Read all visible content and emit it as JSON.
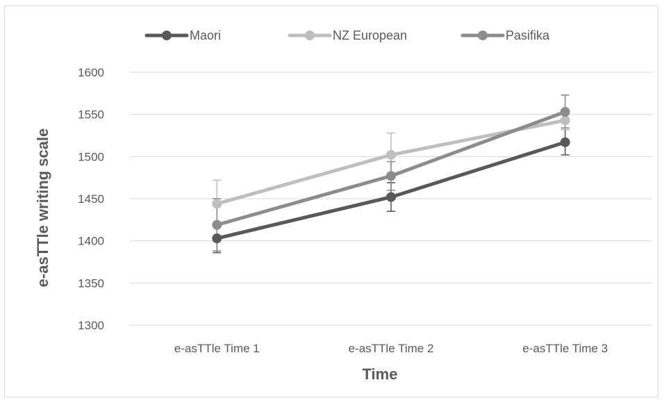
{
  "chart_data": {
    "type": "line",
    "categories": [
      "e-asTTle Time 1",
      "e-asTTle Time 2",
      "e-asTTle Time 3"
    ],
    "series": [
      {
        "name": "Maori",
        "color": "#595959",
        "values": [
          1403,
          1452,
          1517
        ],
        "error_low": [
          1386,
          1435,
          1502
        ],
        "error_high": [
          1419,
          1469,
          1532
        ]
      },
      {
        "name": "NZ European",
        "color": "#bfbfbf",
        "values": [
          1444,
          1502,
          1543
        ],
        "error_low": [
          1416,
          1476,
          1532
        ],
        "error_high": [
          1472,
          1528,
          1554
        ]
      },
      {
        "name": "Pasifika",
        "color": "#8c8c8c",
        "values": [
          1419,
          1477,
          1553
        ],
        "error_low": [
          1388,
          1460,
          1534
        ],
        "error_high": [
          1450,
          1494,
          1573
        ]
      }
    ],
    "yticks": [
      1300,
      1350,
      1400,
      1450,
      1500,
      1550,
      1600
    ],
    "ylim": [
      1300,
      1600
    ],
    "xlabel": "Time",
    "ylabel": "e-asTTle writing scale",
    "grid": true,
    "legend_position": "top"
  }
}
